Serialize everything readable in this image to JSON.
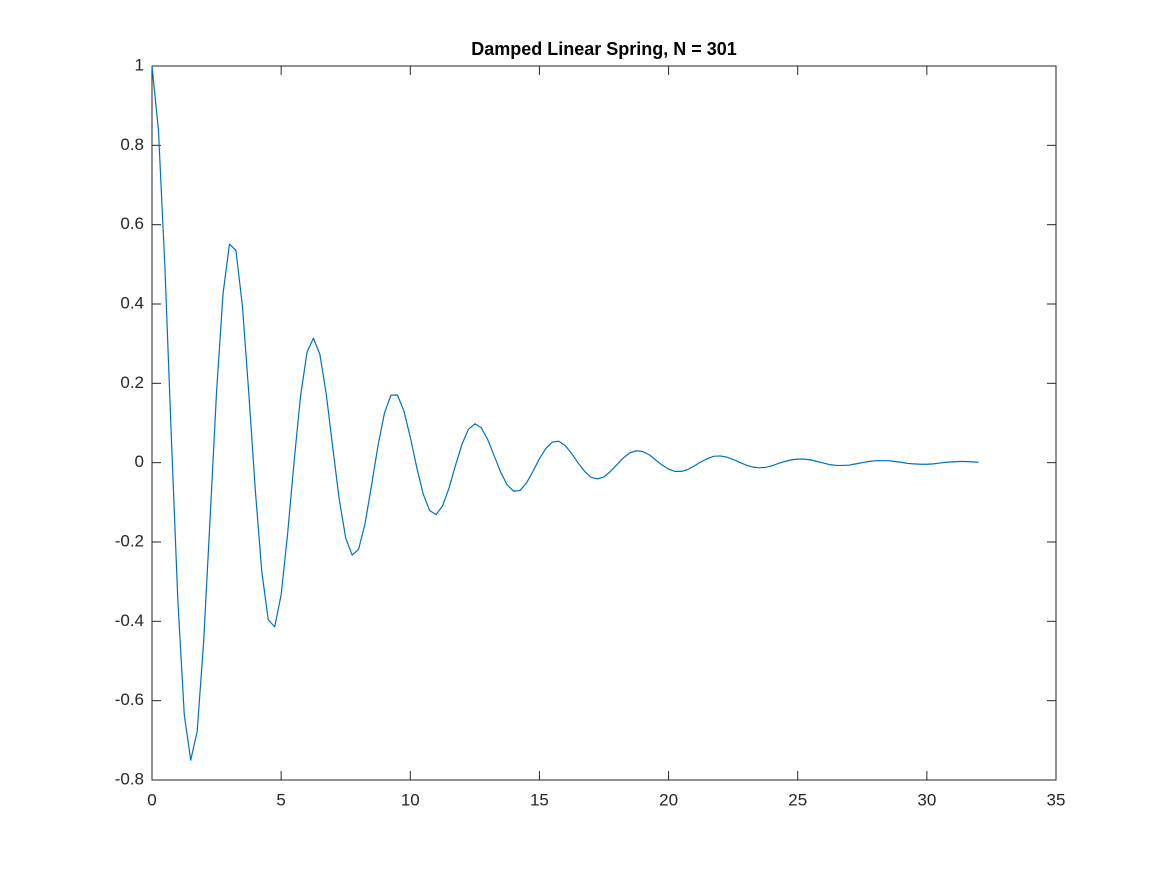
{
  "chart_data": {
    "type": "line",
    "title": "Damped Linear Spring, N = 301",
    "x": [
      0,
      0.25,
      0.5,
      0.75,
      1,
      1.25,
      1.5,
      1.75,
      2,
      2.25,
      2.5,
      2.75,
      3,
      3.25,
      3.5,
      3.75,
      4,
      4.25,
      4.5,
      4.75,
      5,
      5.25,
      5.5,
      5.75,
      6,
      6.25,
      6.5,
      6.75,
      7,
      7.25,
      7.5,
      7.75,
      8,
      8.25,
      8.5,
      8.75,
      9,
      9.25,
      9.5,
      9.75,
      10,
      10.25,
      10.5,
      10.75,
      11,
      11.25,
      11.5,
      11.75,
      12,
      12.25,
      12.5,
      12.75,
      13,
      13.25,
      13.5,
      13.75,
      14,
      14.25,
      14.5,
      14.75,
      15,
      15.25,
      15.5,
      15.75,
      16,
      16.25,
      16.5,
      16.75,
      17,
      17.25,
      17.5,
      17.75,
      18,
      18.25,
      18.5,
      18.75,
      19,
      19.25,
      19.5,
      19.75,
      20,
      20.25,
      20.5,
      20.75,
      21,
      21.25,
      21.5,
      21.75,
      22,
      22.25,
      22.5,
      22.75,
      23,
      23.25,
      23.5,
      23.75,
      24,
      24.25,
      24.5,
      24.75,
      25,
      25.25,
      25.5,
      25.75,
      26,
      26.25,
      26.5,
      26.75,
      27,
      27.25,
      27.5,
      27.75,
      28,
      28.25,
      28.5,
      28.75,
      29,
      29.25,
      29.5,
      29.75,
      30,
      30.25,
      30.5,
      30.75,
      31,
      31.25,
      31.5,
      31.75,
      32
    ],
    "values": [
      1,
      0.838,
      0.493,
      0.062,
      -0.346,
      -0.636,
      -0.75,
      -0.677,
      -0.451,
      -0.139,
      0.179,
      0.426,
      0.551,
      0.535,
      0.395,
      0.173,
      -0.069,
      -0.274,
      -0.396,
      -0.414,
      -0.333,
      -0.18,
      0.002,
      0.167,
      0.278,
      0.314,
      0.273,
      0.171,
      0.037,
      -0.093,
      -0.19,
      -0.233,
      -0.218,
      -0.153,
      -0.057,
      0.043,
      0.125,
      0.17,
      0.171,
      0.131,
      0.064,
      -0.012,
      -0.079,
      -0.121,
      -0.131,
      -0.109,
      -0.064,
      -0.007,
      0.046,
      0.084,
      0.098,
      0.088,
      0.058,
      0.017,
      -0.024,
      -0.056,
      -0.072,
      -0.07,
      -0.051,
      -0.022,
      0.01,
      0.036,
      0.052,
      0.054,
      0.043,
      0.023,
      -0.001,
      -0.022,
      -0.037,
      -0.041,
      -0.036,
      -0.022,
      -0.005,
      0.012,
      0.025,
      0.03,
      0.028,
      0.02,
      0.007,
      -0.006,
      -0.016,
      -0.022,
      -0.022,
      -0.017,
      -0.008,
      0.002,
      0.01,
      0.016,
      0.017,
      0.014,
      0.008,
      0.001,
      -0.006,
      -0.011,
      -0.013,
      -0.012,
      -0.008,
      -0.002,
      0.003,
      0.007,
      0.009,
      0.009,
      0.007,
      0.003,
      -0.001,
      -0.005,
      -0.007,
      -0.007,
      -0.006,
      -0.003,
      0,
      0.003,
      0.005,
      0.005,
      0.005,
      0.003,
      0.001,
      -0.002,
      -0.003,
      -0.004,
      -0.004,
      -0.003,
      -0.001,
      0.001,
      0.002,
      0.003,
      0.003,
      0.002,
      0.001
    ],
    "color": "#0072bd",
    "xlim": [
      0,
      35
    ],
    "xticks": [
      0,
      5,
      10,
      15,
      20,
      25,
      30,
      35
    ],
    "ylim": [
      -0.8,
      1
    ],
    "yticks": [
      -0.8,
      -0.6,
      -0.4,
      -0.2,
      0,
      0.2,
      0.4,
      0.6,
      0.8,
      1
    ],
    "grid": false
  }
}
